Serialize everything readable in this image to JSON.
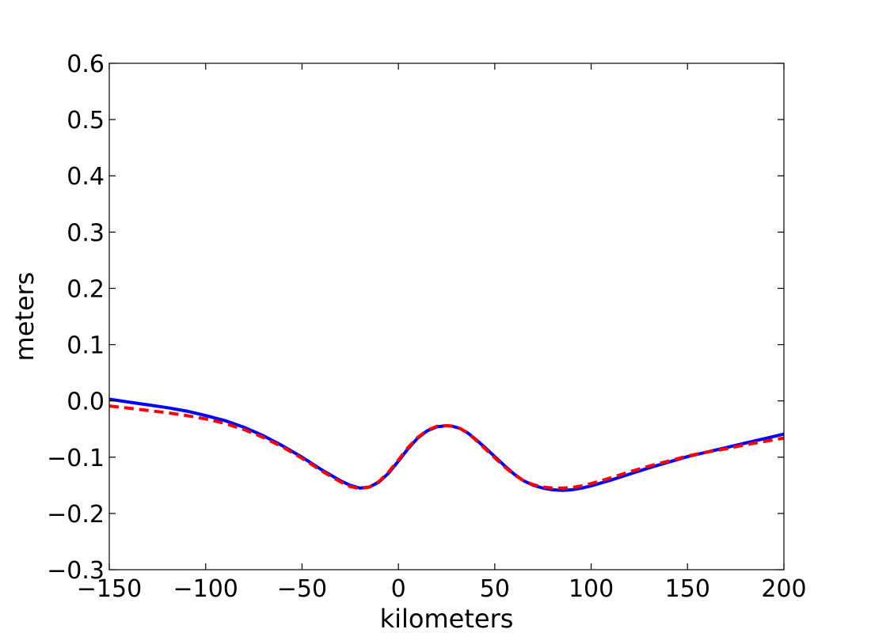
{
  "chart_data": {
    "type": "line",
    "title": "",
    "xlabel": "kilometers",
    "ylabel": "meters",
    "xlim": [
      -150,
      200
    ],
    "ylim": [
      -0.3,
      0.6
    ],
    "x_ticks": [
      -150,
      -100,
      -50,
      0,
      50,
      100,
      150,
      200
    ],
    "x_tick_labels": [
      "−150",
      "−100",
      "−50",
      "0",
      "50",
      "100",
      "150",
      "200"
    ],
    "y_ticks": [
      -0.3,
      -0.2,
      -0.1,
      0.0,
      0.1,
      0.2,
      0.3,
      0.4,
      0.5,
      0.6
    ],
    "y_tick_labels": [
      "−0.3",
      "−0.2",
      "−0.1",
      "0.0",
      "0.1",
      "0.2",
      "0.3",
      "0.4",
      "0.5",
      "0.6"
    ],
    "grid": false,
    "legend": "none",
    "series": [
      {
        "color": "#0000ff",
        "style": "solid",
        "x": [
          -150,
          -140,
          -130,
          -120,
          -110,
          -100,
          -90,
          -80,
          -70,
          -60,
          -50,
          -40,
          -30,
          -25,
          -20,
          -15,
          -10,
          -5,
          0,
          5,
          10,
          15,
          20,
          25,
          28,
          32,
          36,
          40,
          45,
          50,
          55,
          60,
          65,
          70,
          75,
          80,
          85,
          90,
          95,
          100,
          110,
          120,
          130,
          140,
          150,
          160,
          170,
          180,
          190,
          200
        ],
        "y": [
          0.003,
          -0.002,
          -0.007,
          -0.012,
          -0.018,
          -0.026,
          -0.035,
          -0.047,
          -0.062,
          -0.08,
          -0.1,
          -0.122,
          -0.142,
          -0.15,
          -0.155,
          -0.153,
          -0.144,
          -0.128,
          -0.107,
          -0.085,
          -0.066,
          -0.053,
          -0.046,
          -0.044,
          -0.045,
          -0.049,
          -0.057,
          -0.068,
          -0.083,
          -0.099,
          -0.115,
          -0.13,
          -0.142,
          -0.15,
          -0.155,
          -0.158,
          -0.159,
          -0.158,
          -0.155,
          -0.151,
          -0.141,
          -0.13,
          -0.119,
          -0.109,
          -0.099,
          -0.091,
          -0.083,
          -0.075,
          -0.067,
          -0.059
        ]
      },
      {
        "color": "#ff0000",
        "style": "dashed",
        "x": [
          -150,
          -140,
          -130,
          -120,
          -110,
          -100,
          -90,
          -80,
          -70,
          -60,
          -50,
          -40,
          -30,
          -25,
          -20,
          -15,
          -10,
          -5,
          0,
          5,
          10,
          15,
          20,
          25,
          28,
          32,
          36,
          40,
          45,
          50,
          55,
          60,
          65,
          70,
          75,
          80,
          85,
          90,
          95,
          100,
          110,
          120,
          130,
          140,
          150,
          160,
          170,
          180,
          190,
          200
        ],
        "y": [
          -0.009,
          -0.013,
          -0.017,
          -0.021,
          -0.026,
          -0.032,
          -0.04,
          -0.051,
          -0.065,
          -0.082,
          -0.102,
          -0.124,
          -0.144,
          -0.152,
          -0.156,
          -0.153,
          -0.143,
          -0.126,
          -0.105,
          -0.083,
          -0.065,
          -0.052,
          -0.045,
          -0.044,
          -0.045,
          -0.049,
          -0.057,
          -0.069,
          -0.085,
          -0.101,
          -0.117,
          -0.131,
          -0.142,
          -0.149,
          -0.153,
          -0.155,
          -0.155,
          -0.154,
          -0.151,
          -0.147,
          -0.137,
          -0.126,
          -0.116,
          -0.107,
          -0.098,
          -0.091,
          -0.085,
          -0.078,
          -0.072,
          -0.066
        ]
      }
    ]
  }
}
